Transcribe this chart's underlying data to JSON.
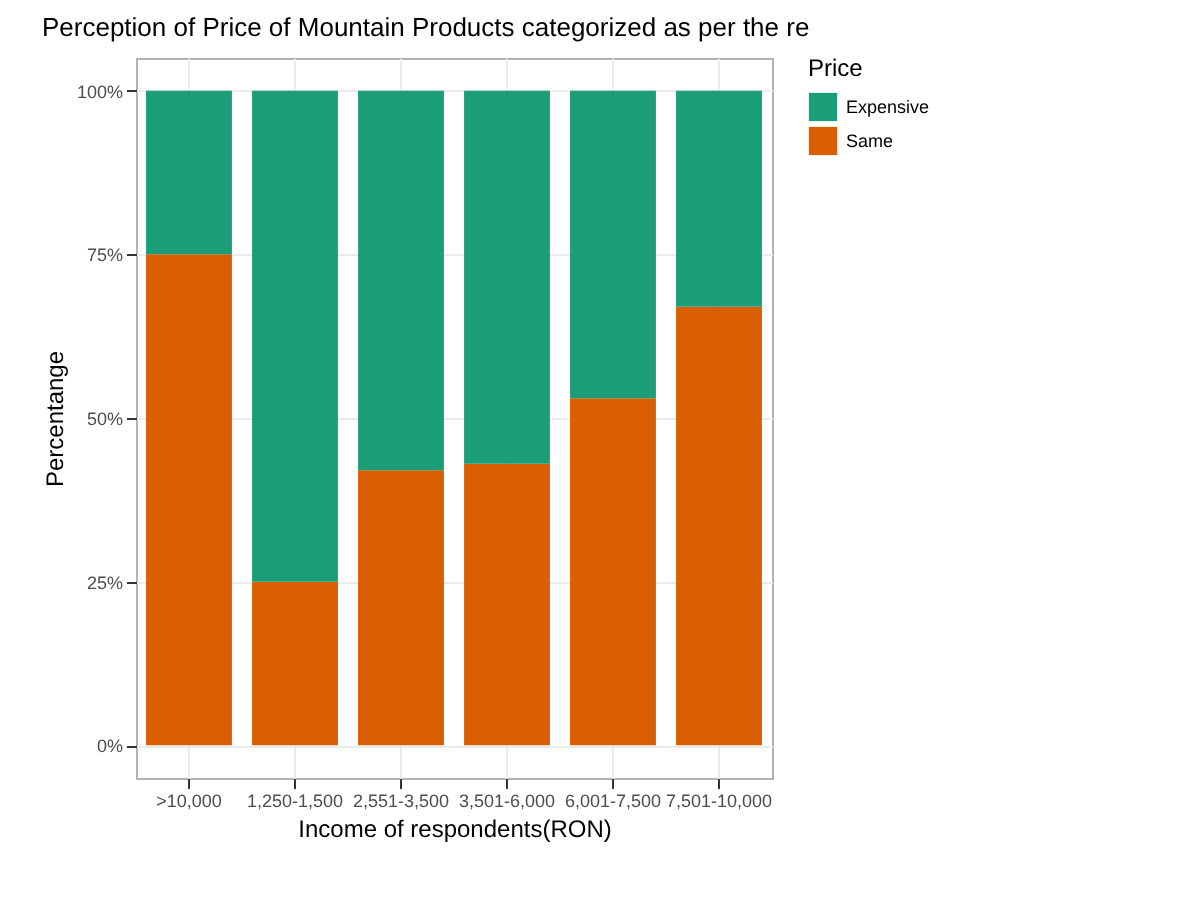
{
  "chart_data": {
    "type": "bar",
    "title": "Perception of Price of Mountain Products categorized as per the re",
    "xlabel": "Income of respondents(RON)",
    "ylabel": "Percentange",
    "legend_title": "Price",
    "categories": [
      ">10,000",
      "1,250-1,500",
      "2,551-3,500",
      "3,501-6,000",
      "6,001-7,500",
      "7,501-10,000"
    ],
    "stacked": true,
    "series": [
      {
        "name": "Same",
        "color": "#d95f02",
        "values": [
          75,
          25,
          42,
          43,
          53,
          67
        ]
      },
      {
        "name": "Expensive",
        "color": "#1b9e77",
        "values": [
          25,
          75,
          58,
          57,
          47,
          33
        ]
      }
    ],
    "ylim": [
      -5,
      105
    ],
    "yticks": [
      {
        "value": 0,
        "label": "0%"
      },
      {
        "value": 25,
        "label": "25%"
      },
      {
        "value": 50,
        "label": "50%"
      },
      {
        "value": 75,
        "label": "75%"
      },
      {
        "value": 100,
        "label": "100%"
      }
    ],
    "grid": true,
    "legend": "right"
  }
}
